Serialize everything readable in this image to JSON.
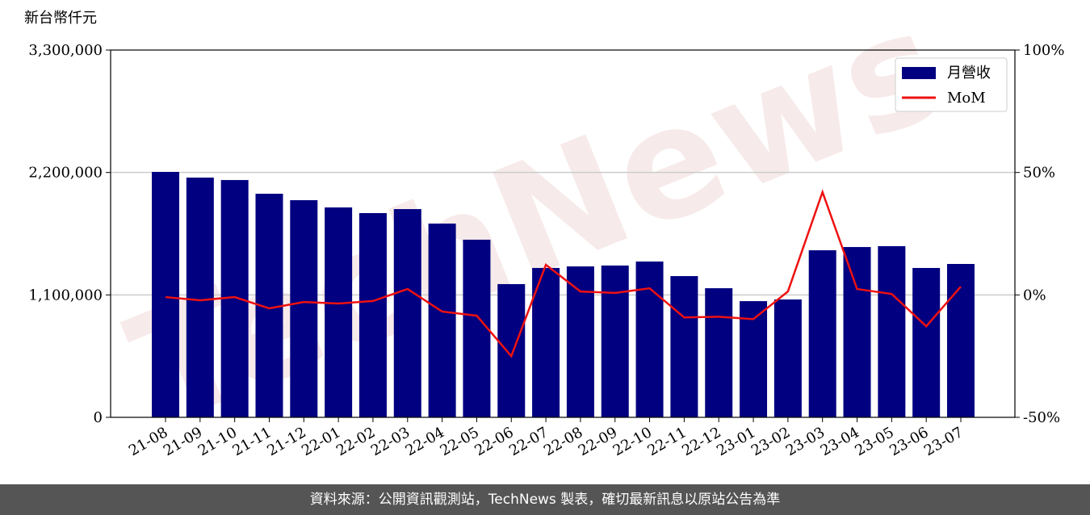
{
  "chart_data": {
    "type": "bar_line",
    "y_label": "新台幣仟元",
    "watermark": "TechNews",
    "footer": "資料來源：公開資訊觀測站，TechNews 製表，確切最新訊息以原站公告為準",
    "categories": [
      "21-08",
      "21-09",
      "21-10",
      "21-11",
      "21-12",
      "22-01",
      "22-02",
      "22-03",
      "22-04",
      "22-05",
      "22-06",
      "22-07",
      "22-08",
      "22-09",
      "22-10",
      "22-11",
      "22-12",
      "23-01",
      "23-02",
      "23-03",
      "23-04",
      "23-05",
      "23-06",
      "23-07"
    ],
    "series": [
      {
        "name": "月營收",
        "color": "#000080",
        "type": "bar",
        "values": [
          2205000,
          2154000,
          2132000,
          2009000,
          1951000,
          1886000,
          1835000,
          1871000,
          1741000,
          1596000,
          1197000,
          1342000,
          1356000,
          1364000,
          1400000,
          1269000,
          1160000,
          1044000,
          1059000,
          1501000,
          1530000,
          1538000,
          1342000,
          1378000
        ]
      },
      {
        "name": "MoM",
        "color": "#ee1111",
        "type": "line",
        "axis": "y2",
        "values": [
          -0.9,
          -2.2,
          -0.9,
          -5.5,
          -2.9,
          -3.5,
          -2.5,
          2.4,
          -6.8,
          -8.5,
          -25.0,
          12.3,
          1.4,
          0.8,
          2.7,
          -9.2,
          -8.9,
          -9.9,
          1.4,
          42.0,
          2.4,
          0.4,
          -12.8,
          3.4
        ]
      }
    ],
    "ylim": [
      0,
      3300000
    ],
    "yticks": [
      0,
      {
        "value": 1100000,
        "label": "1,100,000"
      },
      {
        "value": 2200000,
        "label": "2,200,000"
      },
      {
        "value": 3300000,
        "label": "3,300,000"
      }
    ],
    "y2lim": [
      -50,
      100
    ],
    "y2ticks": [
      {
        "value": -50,
        "label": "-50%"
      },
      {
        "value": 0,
        "label": "0%"
      },
      {
        "value": 50,
        "label": "50%"
      },
      {
        "value": 100,
        "label": "100%"
      }
    ],
    "grid": true,
    "legend": "upper right"
  }
}
